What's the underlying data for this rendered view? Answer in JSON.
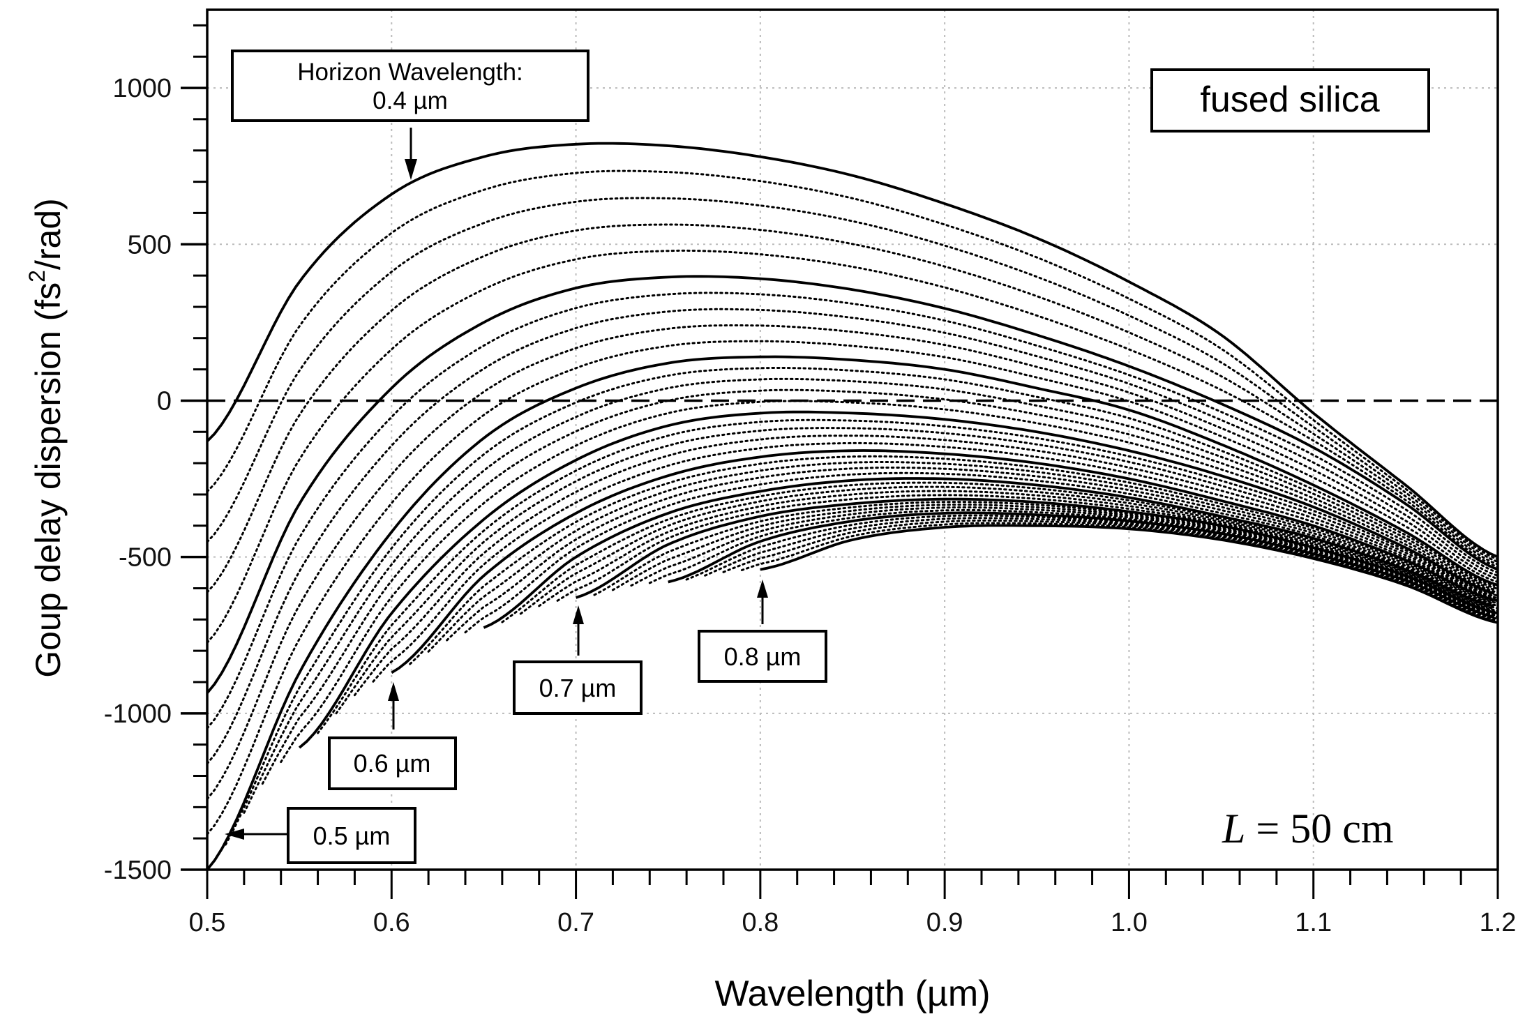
{
  "chart_data": {
    "type": "line",
    "xlabel": "Wavelength (µm)",
    "ylabel": {
      "prefix": "Goup delay dispersion (fs",
      "sup": "2",
      "suffix": "/rad)"
    },
    "xlim": [
      0.5,
      1.2
    ],
    "ylim": [
      -1500,
      1250
    ],
    "xticks": [
      "0.5",
      "0.6",
      "0.7",
      "0.8",
      "0.9",
      "1.0",
      "1.1",
      "1.2"
    ],
    "yticks": [
      "1000",
      "500",
      "0",
      "-500",
      "-1000",
      "-1500"
    ],
    "x_minor_step": 0.02,
    "y_minor_step": 100,
    "grid": true,
    "reference_line": {
      "y": 0,
      "style": "dashed"
    },
    "x": [
      0.5,
      0.55,
      0.6,
      0.65,
      0.7,
      0.75,
      0.8,
      0.85,
      0.9,
      0.95,
      1.0,
      1.05,
      1.1,
      1.15,
      1.2
    ],
    "series_step": 0.01,
    "series": [
      {
        "horizon_wavelength": 0.4,
        "style": "solid",
        "values": [
          -130,
          380,
          660,
          780,
          820,
          815,
          780,
          720,
          630,
          520,
          380,
          210,
          -40,
          -270,
          -500
        ]
      },
      {
        "horizon_wavelength": 0.45,
        "style": "solid",
        "values": [
          -935,
          -330,
          40,
          250,
          360,
          395,
          390,
          355,
          295,
          210,
          110,
          -10,
          -150,
          -330,
          -540
        ]
      },
      {
        "horizon_wavelength": 0.5,
        "style": "solid",
        "values": [
          -1500,
          -870,
          -420,
          -120,
          40,
          120,
          140,
          130,
          100,
          40,
          -30,
          -140,
          -270,
          -420,
          -590
        ]
      },
      {
        "horizon_wavelength": 0.55,
        "style": "solid",
        "values": [
          null,
          -1110,
          -680,
          -380,
          -190,
          -80,
          -40,
          -40,
          -60,
          -100,
          -160,
          -240,
          -340,
          -470,
          -620
        ]
      },
      {
        "horizon_wavelength": 0.6,
        "style": "solid",
        "values": [
          null,
          null,
          -870,
          -560,
          -360,
          -240,
          -180,
          -160,
          -170,
          -200,
          -250,
          -320,
          -400,
          -510,
          -640
        ]
      },
      {
        "horizon_wavelength": 0.65,
        "style": "solid",
        "values": [
          null,
          null,
          null,
          -726,
          -500,
          -360,
          -290,
          -255,
          -250,
          -270,
          -310,
          -370,
          -440,
          -540,
          -660
        ]
      },
      {
        "horizon_wavelength": 0.7,
        "style": "solid",
        "values": [
          null,
          null,
          null,
          null,
          -630,
          -460,
          -370,
          -330,
          -315,
          -325,
          -355,
          -400,
          -470,
          -560,
          -680
        ]
      },
      {
        "horizon_wavelength": 0.75,
        "style": "solid",
        "values": [
          null,
          null,
          null,
          null,
          null,
          -580,
          -450,
          -385,
          -360,
          -365,
          -385,
          -425,
          -490,
          -575,
          -695
        ]
      },
      {
        "horizon_wavelength": 0.8,
        "style": "solid",
        "values": [
          null,
          null,
          null,
          null,
          null,
          null,
          -540,
          -445,
          -405,
          -400,
          -410,
          -445,
          -505,
          -590,
          -710
        ]
      }
    ],
    "intermediate_curves": {
      "style": "dotted",
      "per_interval": 4
    }
  },
  "annotations": {
    "horizon_title": "Horizon Wavelength:",
    "horizon_value": "0.4 µm",
    "label_05": "0.5 µm",
    "label_06": "0.6 µm",
    "label_07": "0.7 µm",
    "label_08": "0.8 µm",
    "material": "fused silica",
    "length_var": "L",
    "length_value": " = 50 cm"
  }
}
